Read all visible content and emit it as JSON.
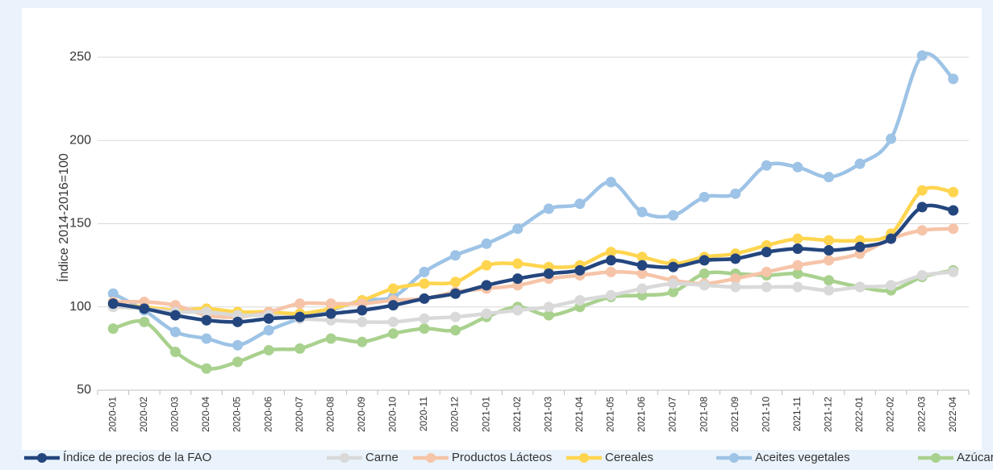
{
  "chart_data": {
    "type": "line",
    "y_label": "Índice 2014-2016=100",
    "categories": [
      "2020-01",
      "2020-02",
      "2020-03",
      "2020-04",
      "2020-05",
      "2020-06",
      "2020-07",
      "2020-08",
      "2020-09",
      "2020-10",
      "2020-11",
      "2020-12",
      "2021-01",
      "2021-02",
      "2021-03",
      "2021-04",
      "2021-05",
      "2021-06",
      "2021-07",
      "2021-08",
      "2021-09",
      "2021-10",
      "2021-11",
      "2021-12",
      "2022-01",
      "2022-02",
      "2022-03",
      "2022-04"
    ],
    "series": [
      {
        "name": "Índice de precios de la FAO",
        "color": "#24467e",
        "values": [
          102,
          99,
          95,
          92,
          91,
          93,
          94,
          96,
          98,
          101,
          105,
          108,
          113,
          117,
          120,
          122,
          128,
          125,
          124,
          128,
          129,
          133,
          135,
          134,
          136,
          141,
          160,
          158
        ]
      },
      {
        "name": "Carne",
        "color": "#d9d9d9",
        "values": [
          100,
          99,
          97,
          97,
          95,
          95,
          93,
          92,
          91,
          91,
          93,
          94,
          96,
          98,
          100,
          104,
          107,
          111,
          114,
          113,
          112,
          112,
          112,
          110,
          112,
          113,
          119,
          121
        ]
      },
      {
        "name": "Productos Lácteos",
        "color": "#f6c4a8",
        "values": [
          103,
          103,
          101,
          95,
          94,
          97,
          102,
          102,
          102,
          104,
          105,
          109,
          111,
          113,
          117,
          119,
          121,
          120,
          116,
          114,
          117,
          121,
          125,
          128,
          132,
          141,
          146,
          147
        ]
      },
      {
        "name": "Cereales",
        "color": "#ffd54f",
        "values": [
          101,
          100,
          98,
          99,
          97,
          97,
          96,
          99,
          104,
          111,
          114,
          115,
          125,
          126,
          124,
          125,
          133,
          130,
          126,
          130,
          132,
          137,
          141,
          140,
          140,
          144,
          170,
          169
        ]
      },
      {
        "name": "Aceites vegetales",
        "color": "#9dc3e6",
        "values": [
          108,
          98,
          85,
          81,
          77,
          86,
          93,
          98,
          104,
          106,
          121,
          131,
          138,
          147,
          159,
          162,
          175,
          157,
          155,
          166,
          168,
          185,
          184,
          178,
          186,
          201,
          251,
          237
        ]
      },
      {
        "name": "Azúcar",
        "color": "#a9d18e",
        "values": [
          87,
          91,
          73,
          63,
          67,
          74,
          75,
          81,
          79,
          84,
          87,
          86,
          94,
          100,
          95,
          100,
          106,
          107,
          109,
          120,
          120,
          119,
          120,
          116,
          112,
          110,
          118,
          122
        ]
      }
    ],
    "ylim": [
      50,
      250
    ],
    "yticks": [
      50,
      100,
      150,
      200,
      250
    ],
    "grid": true
  }
}
